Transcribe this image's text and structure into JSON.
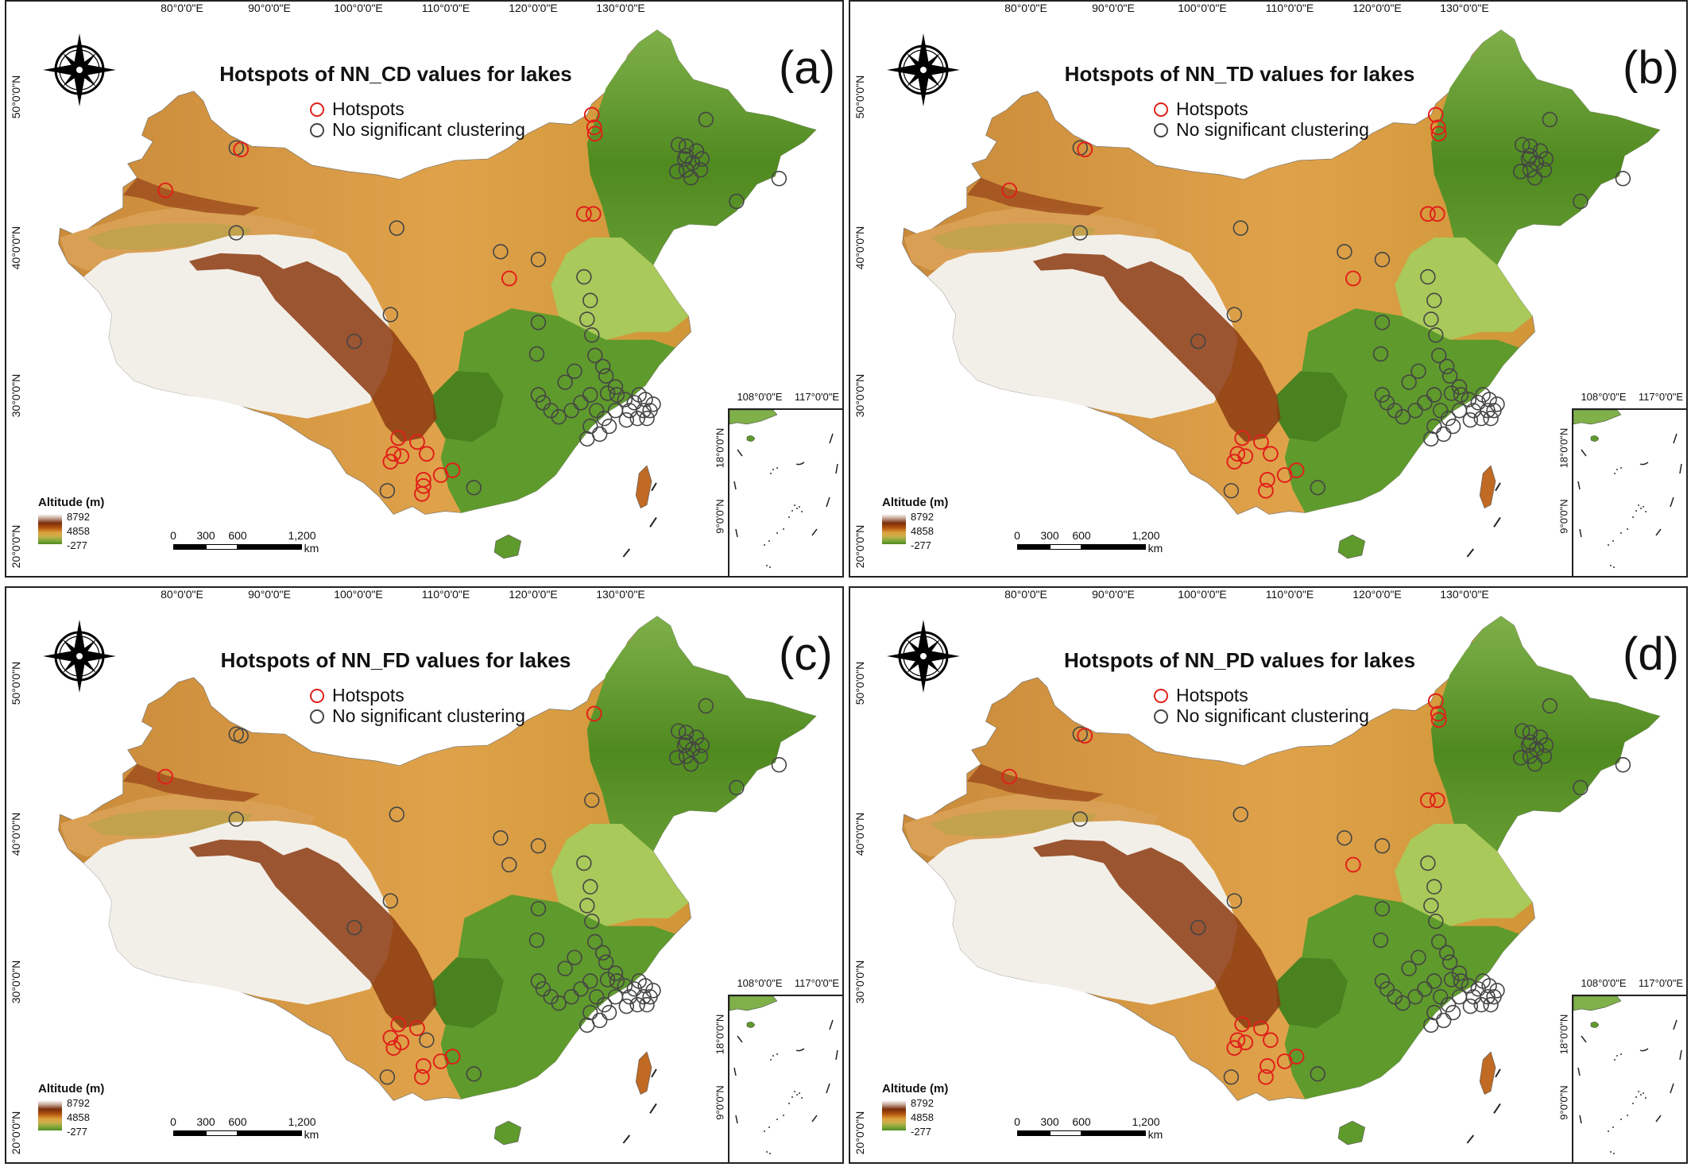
{
  "figure": {
    "lon_ticks": [
      "80°0'0\"E",
      "90°0'0\"E",
      "100°0'0\"E",
      "110°0'0\"E",
      "120°0'0\"E",
      "130°0'0\"E"
    ],
    "lat_ticks": [
      "50°0'0\"N",
      "40°0'0\"N",
      "30°0'0\"N",
      "20°0'0\"N"
    ],
    "legend": {
      "hotspots": "Hotspots",
      "no_clustering": "No significant clustering",
      "hotspot_color": "#e0201a",
      "no_cluster_color": "#444444"
    },
    "altitude": {
      "title": "Altitude (m)",
      "max": "8792",
      "mid": "4858",
      "min": "-277"
    },
    "scale_bar": {
      "labels": [
        "0",
        "300",
        "600",
        "1,200"
      ],
      "unit": "km"
    },
    "inset": {
      "lon_ticks": [
        "108°0'0\"E",
        "117°0'0\"E"
      ],
      "lat_ticks": [
        "18°0'0\"N",
        "9°0'0\"N"
      ]
    },
    "colors": {
      "plateau_white": "#f2efe9",
      "plateau_brown": "#8c3a10",
      "highland_orange": "#d98a2b",
      "lowland_green": "#5f9a2c",
      "plain_light_green": "#a9c95a"
    }
  },
  "panels": [
    {
      "label": "(a)",
      "title": "Hotspots of NN_CD values for lakes"
    },
    {
      "label": "(b)",
      "title": "Hotspots of NN_TD values for lakes"
    },
    {
      "label": "(c)",
      "title": "Hotspots of NN_FD values for lakes"
    },
    {
      "label": "(d)",
      "title": "Hotspots of NN_PD values for lakes"
    }
  ]
}
